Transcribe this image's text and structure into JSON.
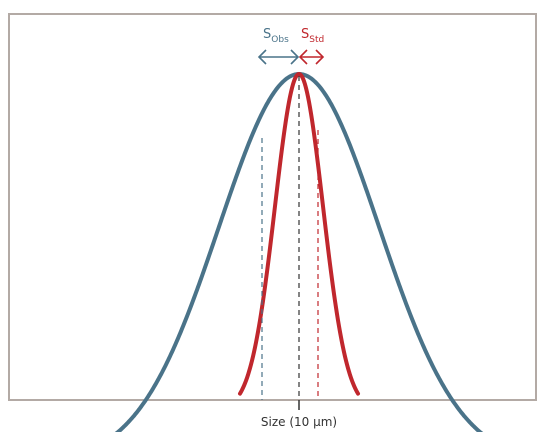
{
  "colors": {
    "observed": "#4a7389",
    "standard": "#c0272d",
    "frame": "#b3aaa5",
    "median_line": "#333333"
  },
  "labels": {
    "s_obs": {
      "main": "S",
      "sub": "Obs"
    },
    "s_std": {
      "main": "S",
      "sub": "Std"
    },
    "x_axis": "Size (10 µm)"
  }
}
